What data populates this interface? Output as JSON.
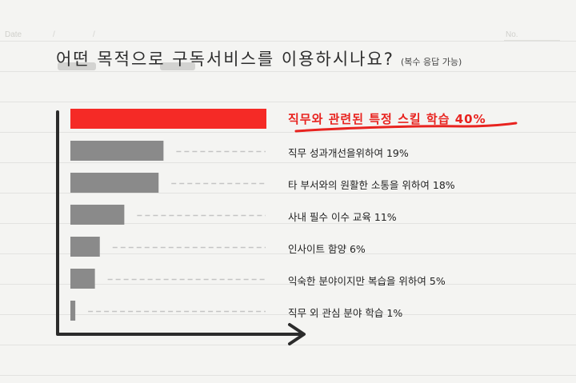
{
  "header": {
    "date_label": "Date",
    "sep1": "/",
    "sep2": "/",
    "no_label": "No."
  },
  "title": {
    "text": "어떤 목적으로 구독서비스를 이용하시나요?",
    "note": "(복수 응답 가능)"
  },
  "colors": {
    "highlight": "#f52a26",
    "bar": "#8a8a8a",
    "axis": "#2b2b2b",
    "underline": "#e8231f"
  },
  "chart_data": {
    "type": "bar",
    "orientation": "horizontal",
    "categories": [
      "직무와 관련된 특정 스킬 학습",
      "직무 성과개선을위하여",
      "타 부서와의 원활한 소통을 위하여",
      "사내 필수 이수 교육",
      "인사이트 함양",
      "익숙한 분야이지만 복습을 위하여",
      "직무 외 관심 분야 학습"
    ],
    "values": [
      40,
      19,
      18,
      11,
      6,
      5,
      1
    ],
    "labels": [
      "직무와 관련된 특정 스킬 학습 40%",
      "직무 성과개선을위하여 19%",
      "타 부서와의 원활한 소통을 위하여 18%",
      "사내 필수 이수 교육 11%",
      "인사이트 함양 6%",
      "익숙한 분야이지만 복습을 위하여 5%",
      "직무 외 관심 분야 학습 1%"
    ],
    "unit": "%",
    "xlim": [
      0,
      40
    ],
    "highlight_index": 0,
    "grid": false,
    "legend": "none"
  }
}
